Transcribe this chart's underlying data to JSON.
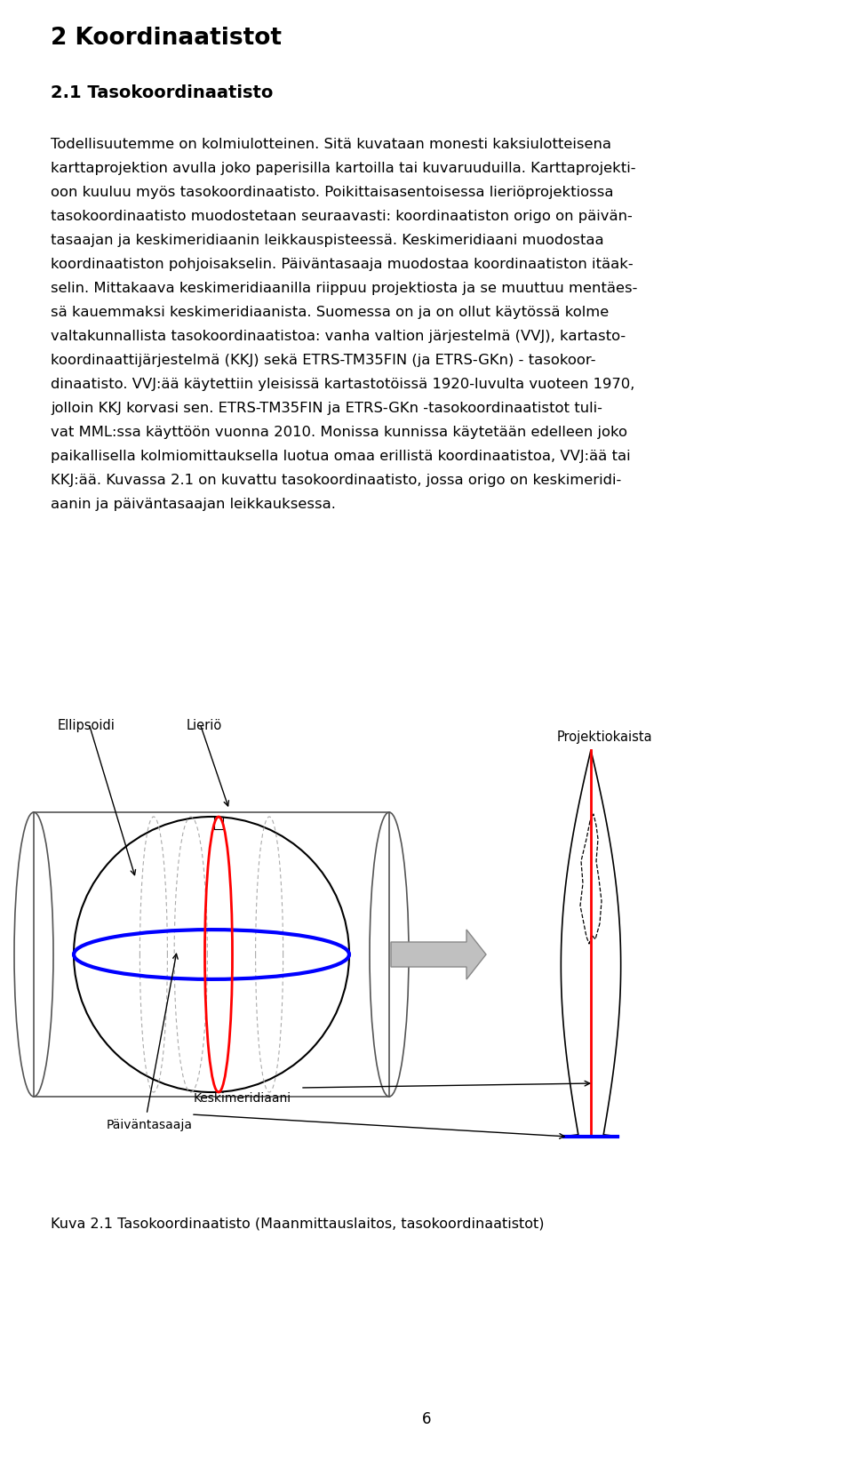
{
  "title": "2 Koordinaatistot",
  "subtitle": "2.1 Tasokoordinaatisto",
  "lines": [
    "Todellisuutemme on kolmiulotteinen. Sitä kuvataan monesti kaksiulotteisena",
    "karttaprojektion avulla joko paperisilla kartoilla tai kuvaruuduilla. Karttaprojekti-",
    "oon kuuluu myös tasokoordinaatisto. Poikittaisasentoisessa lieriöprojektiossa",
    "tasokoordinaatisto muodostetaan seuraavasti: koordinaatiston origo on päivän-",
    "tasaajan ja keskimeridiaanin leikkauspisteessä. Keskimeridiaani muodostaa",
    "koordinaatiston pohjoisakselin. Päiväntasaaja muodostaa koordinaatiston itäak-",
    "selin. Mittakaava keskimeridiaanilla riippuu projektiosta ja se muuttuu mentäes-",
    "sä kauemmaksi keskimeridiaanista. Suomessa on ja on ollut käytössä kolme",
    "valtakunnallista tasokoordinaatistoa: vanha valtion järjestelmä (VVJ), kartasto-",
    "koordinaattijärjestelmä (KKJ) sekä ETRS-TM35FIN (ja ETRS-GKn) - tasokoor-",
    "dinaatisto. VVJ:ää käytettiin yleisissä kartastotöissä 1920-luvulta vuoteen 1970,",
    "jolloin KKJ korvasi sen. ETRS-TM35FIN ja ETRS-GKn -tasokoordinaatistot tuli-",
    "vat MML:ssa käyttöön vuonna 2010. Monissa kunnissa käytetään edelleen joko",
    "paikallisella kolmiomittauksella luotua omaa erillistä koordinaatistoa, VVJ:ää tai",
    "KKJ:ää. Kuvassa 2.1 on kuvattu tasokoordinaatisto, jossa origo on keskimeridi-",
    "aanin ja päiväntasaajan leikkauksessa."
  ],
  "figure_caption": "Kuva 2.1 Tasokoordinaatisto (Maanmittauslaitos, tasokoordinaatistot)",
  "page_number": "6",
  "bg": "#ffffff",
  "text_color": "#000000",
  "label_ellipsoidi": "Ellipsoidi",
  "label_lierio": "Lieriö",
  "label_projektiokaista": "Projektiokaista",
  "label_keskimeridiaani": "Keskimeridiaani",
  "label_paiventasaaja": "Päiväntasaaja"
}
